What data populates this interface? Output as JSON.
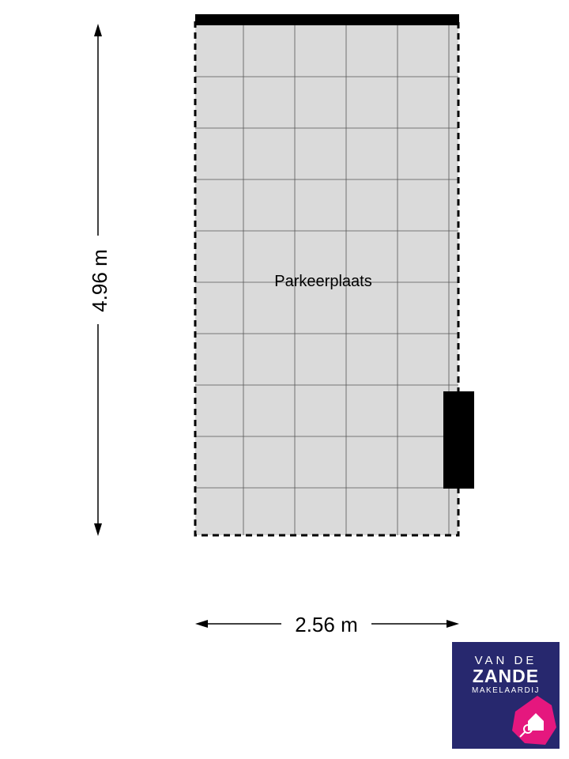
{
  "room": {
    "label": "Parkeerplaats",
    "fill": "#dadada"
  },
  "dimensions": {
    "height": "4.96 m",
    "width": "2.56 m"
  },
  "logo": {
    "line1": "VAN DE",
    "line2": "ZANDE",
    "line3": "MAKELAARDIJ",
    "background": "#27286e",
    "accent": "#e5177e"
  }
}
